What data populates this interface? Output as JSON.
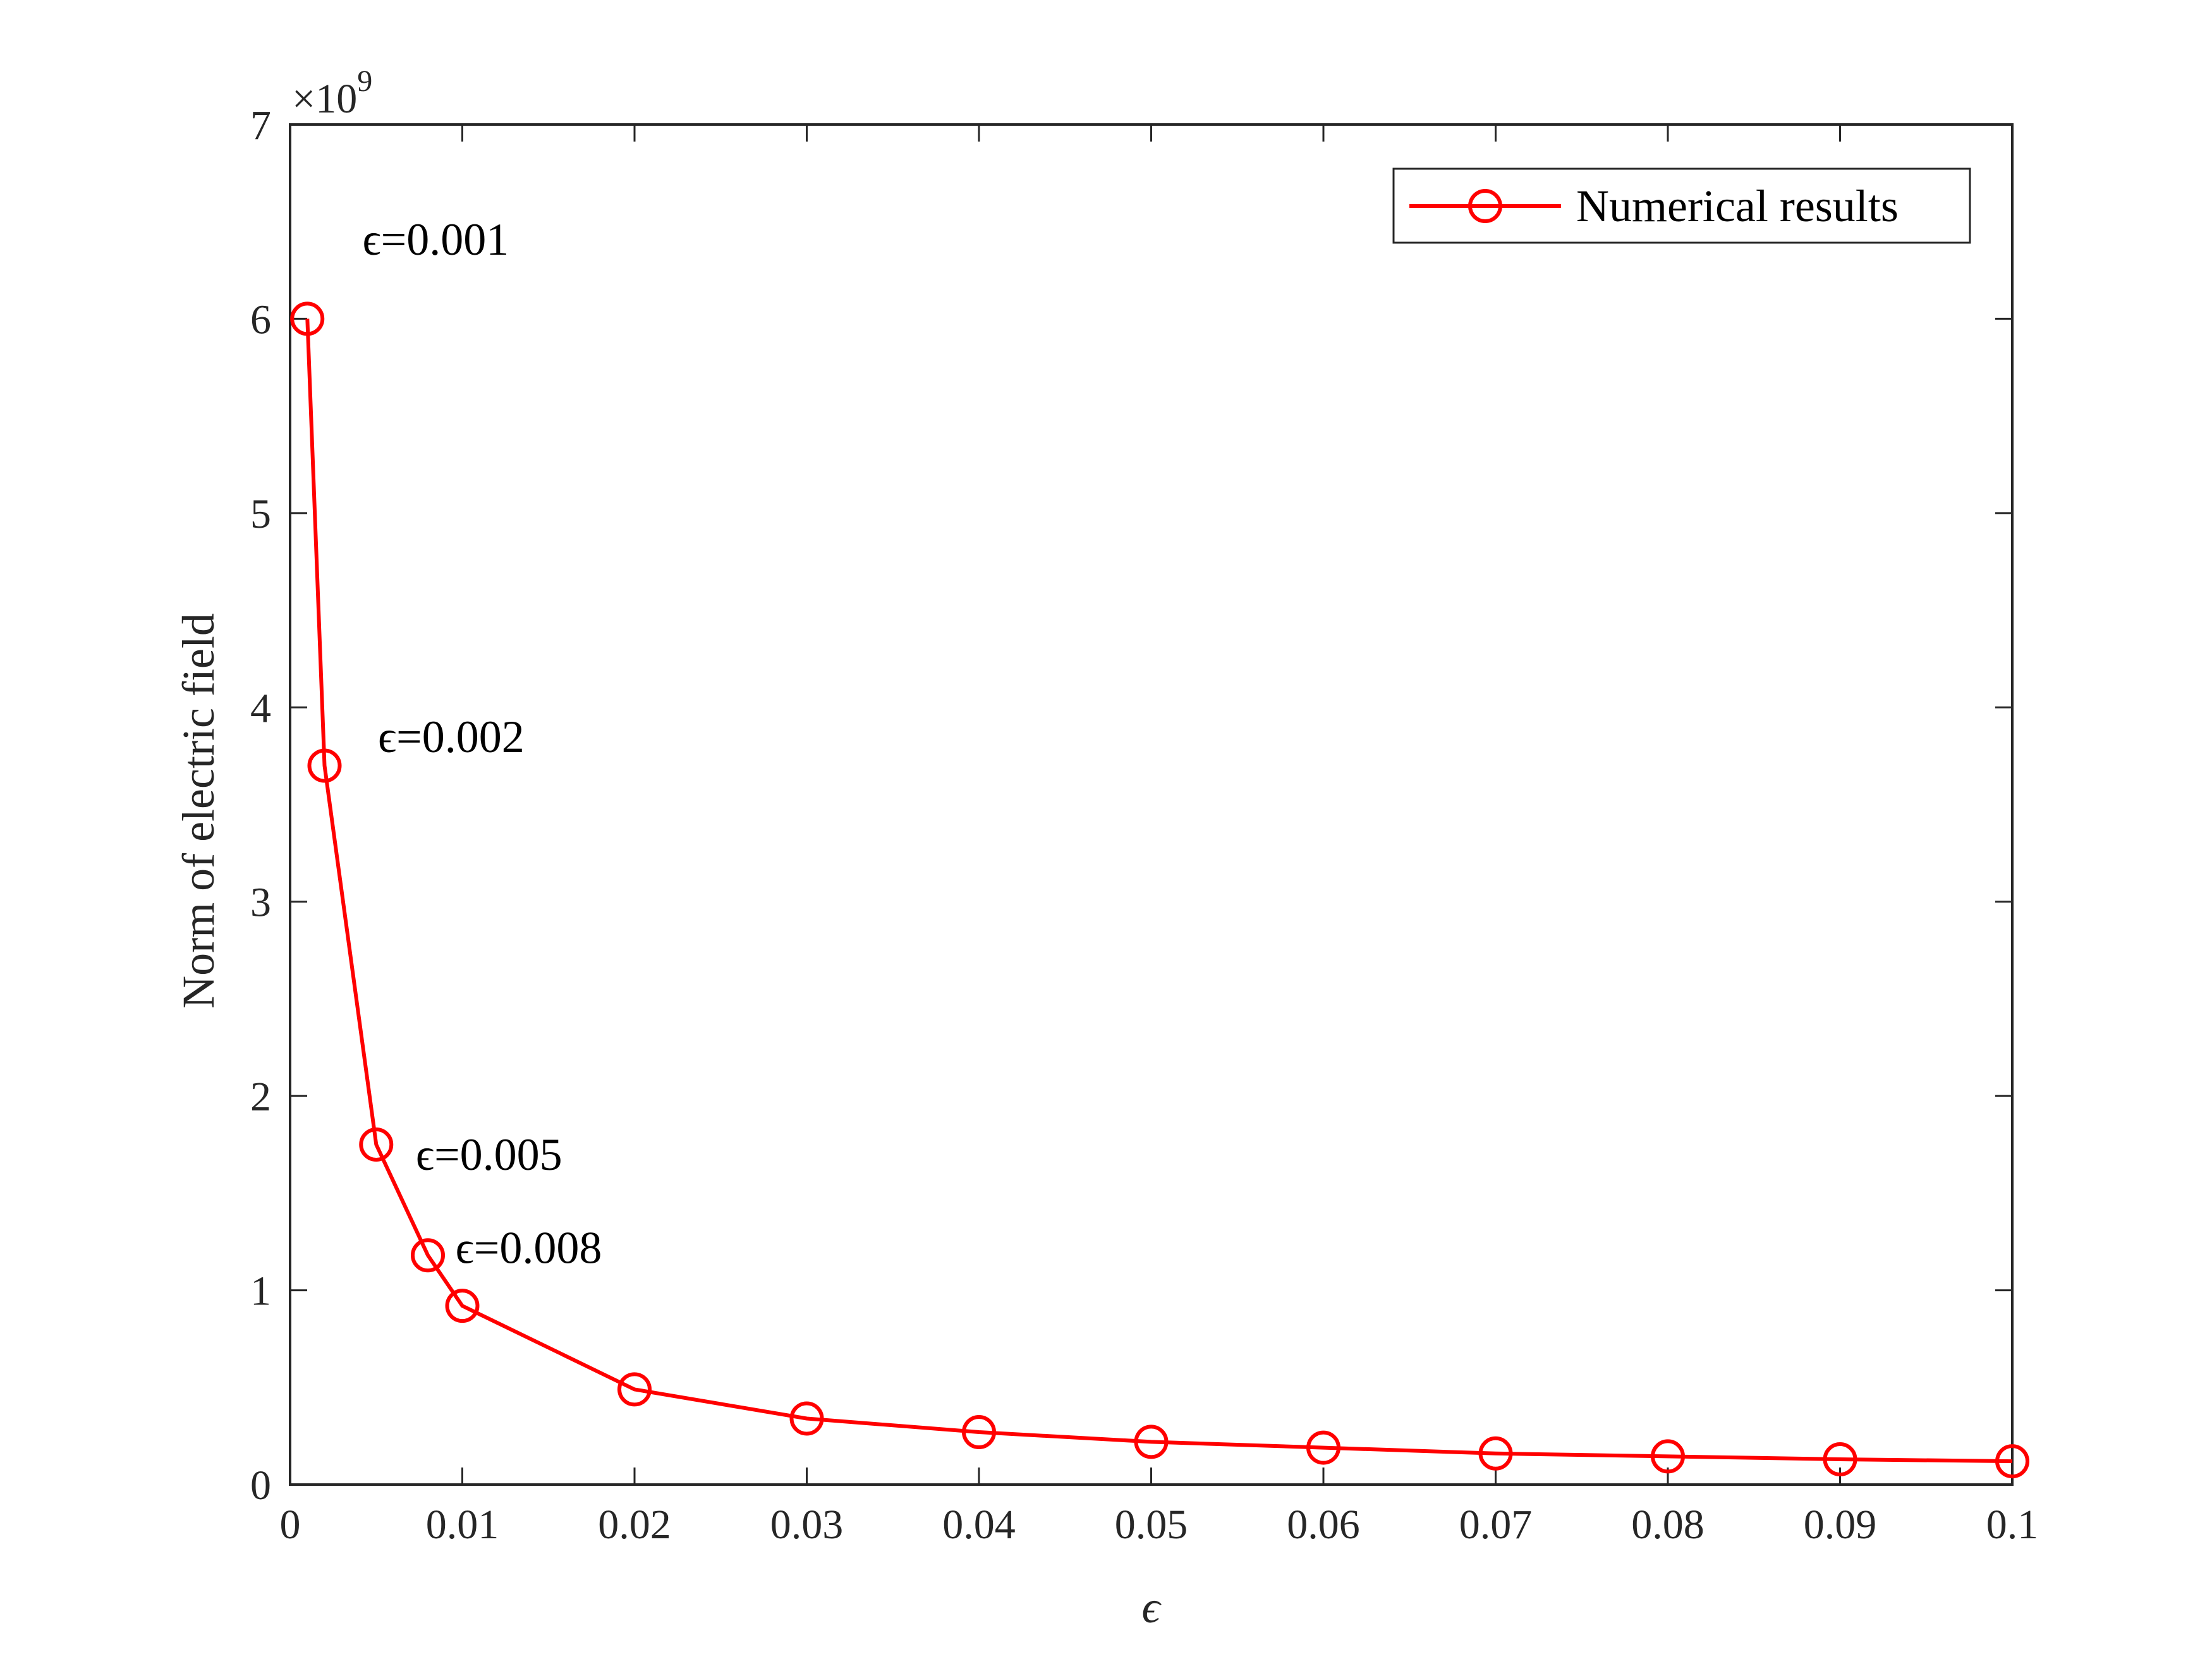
{
  "chart_data": {
    "type": "line",
    "xlabel": "ϵ",
    "ylabel": "Norm of electric field",
    "xlim": [
      0,
      0.1
    ],
    "ylim": [
      0,
      7
    ],
    "y_exponent_label": "×10",
    "y_exponent_power": "9",
    "x_ticks": [
      "0",
      "0.01",
      "0.02",
      "0.03",
      "0.04",
      "0.05",
      "0.06",
      "0.07",
      "0.08",
      "0.09",
      "0.1"
    ],
    "y_ticks": [
      "0",
      "1",
      "2",
      "3",
      "4",
      "5",
      "6",
      "7"
    ],
    "legend_position": "top-right",
    "grid": false,
    "series": [
      {
        "name": "Numerical results",
        "color": "#ff0000",
        "marker": "circle",
        "x": [
          0.001,
          0.002,
          0.005,
          0.008,
          0.01,
          0.02,
          0.03,
          0.04,
          0.05,
          0.06,
          0.07,
          0.08,
          0.09,
          0.1
        ],
        "y": [
          6.0,
          3.7,
          1.75,
          1.18,
          0.92,
          0.49,
          0.34,
          0.27,
          0.22,
          0.19,
          0.16,
          0.145,
          0.13,
          0.12
        ]
      }
    ],
    "annotations": [
      {
        "text": "ϵ=0.001",
        "x": 0.0042,
        "y": 6.33
      },
      {
        "text": "ϵ=0.002",
        "x": 0.0051,
        "y": 3.77
      },
      {
        "text": "ϵ=0.005",
        "x": 0.0073,
        "y": 1.62
      },
      {
        "text": "ϵ=0.008",
        "x": 0.0096,
        "y": 1.14
      }
    ]
  }
}
